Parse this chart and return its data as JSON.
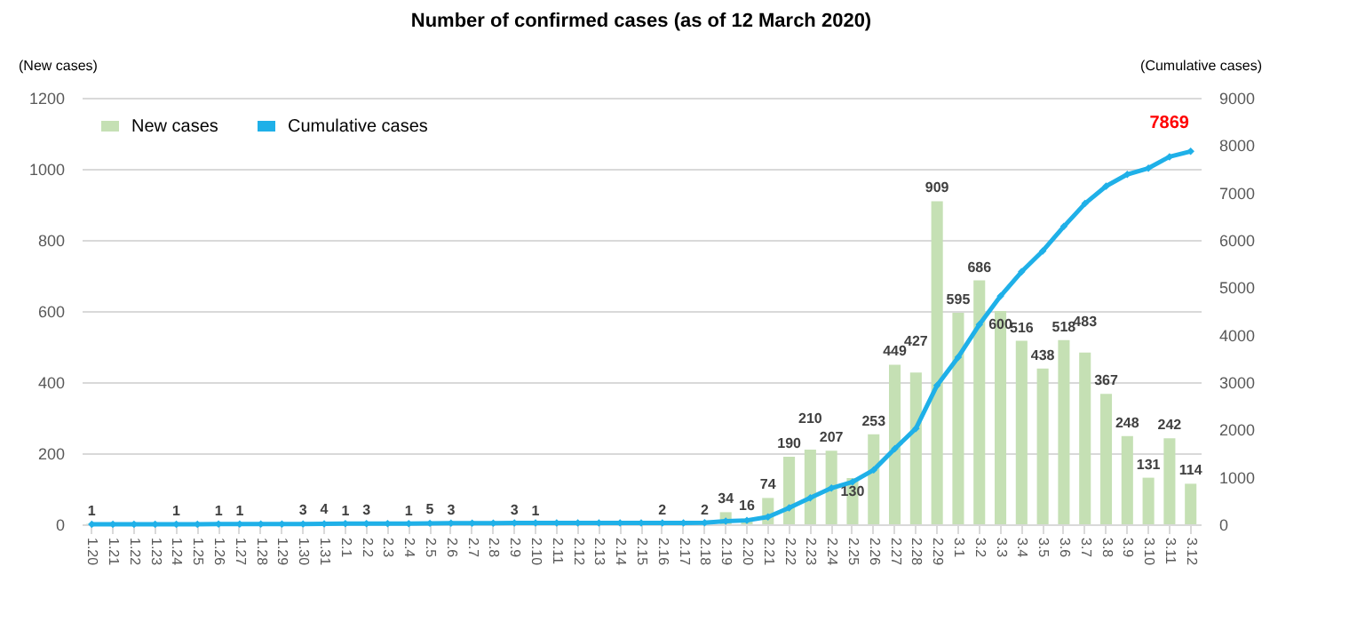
{
  "chart_data": {
    "type": "bar",
    "title": "Number of confirmed cases (as of 12 March 2020)",
    "ylabel": "(New cases)",
    "y2label": "(Cumulative cases)",
    "categories": [
      "1.20",
      "1.21",
      "1.22",
      "1.23",
      "1.24",
      "1.25",
      "1.26",
      "1.27",
      "1.28",
      "1.29",
      "1.30",
      "1.31",
      "2.1",
      "2.2",
      "2.3",
      "2.4",
      "2.5",
      "2.6",
      "2.7",
      "2.8",
      "2.9",
      "2.10",
      "2.11",
      "2.12",
      "2.13",
      "2.14",
      "2.15",
      "2.16",
      "2.17",
      "2.18",
      "2.19",
      "2.20",
      "2.21",
      "2.22",
      "2.23",
      "2.24",
      "2.25",
      "2.26",
      "2.27",
      "2.28",
      "2.29",
      "3.1",
      "3.2",
      "3.3",
      "3.4",
      "3.5",
      "3.6",
      "3.7",
      "3.8",
      "3.9",
      "3.10",
      "3.11",
      "3.12"
    ],
    "series": [
      {
        "name": "New cases",
        "color": "#c5e0b4",
        "values": [
          1,
          0,
          0,
          0,
          1,
          0,
          1,
          1,
          0,
          0,
          3,
          4,
          1,
          3,
          0,
          1,
          5,
          3,
          0,
          0,
          3,
          1,
          0,
          0,
          0,
          0,
          0,
          2,
          0,
          2,
          34,
          16,
          74,
          190,
          210,
          207,
          130,
          253,
          449,
          427,
          909,
          595,
          686,
          600,
          516,
          438,
          518,
          483,
          367,
          248,
          131,
          242,
          114
        ],
        "value_labels": [
          "1",
          null,
          null,
          null,
          "1",
          null,
          "1",
          "1",
          null,
          null,
          "3",
          "4",
          "1",
          "3",
          null,
          "1",
          "5",
          "3",
          null,
          null,
          "3",
          "1",
          null,
          null,
          null,
          null,
          null,
          "2",
          null,
          "2",
          "34",
          "16",
          "74",
          "190",
          "210",
          "207",
          "130",
          "253",
          "449",
          "427",
          "909",
          "595",
          "686",
          "600",
          "516",
          "438",
          "518",
          "483",
          "367",
          "248",
          "131",
          "242",
          "114"
        ]
      },
      {
        "name": "Cumulative cases",
        "type": "line",
        "axis": "y2",
        "color": "#1fb0e8",
        "marker": "diamond",
        "line_style": "solid",
        "values": [
          1,
          1,
          1,
          1,
          2,
          2,
          3,
          4,
          4,
          4,
          7,
          11,
          12,
          15,
          15,
          16,
          21,
          24,
          24,
          24,
          27,
          28,
          28,
          28,
          28,
          28,
          28,
          30,
          30,
          32,
          66,
          82,
          156,
          346,
          556,
          763,
          893,
          1146,
          1595,
          2022,
          2931,
          3526,
          4212,
          4812,
          5328,
          5766,
          6284,
          6767,
          7134,
          7382,
          7513,
          7755,
          7869
        ],
        "value_labels": [
          null,
          null,
          null,
          null,
          null,
          null,
          null,
          null,
          null,
          null,
          null,
          null,
          null,
          null,
          null,
          null,
          null,
          null,
          null,
          null,
          null,
          null,
          null,
          null,
          null,
          null,
          null,
          null,
          null,
          null,
          null,
          null,
          null,
          null,
          null,
          null,
          null,
          null,
          null,
          null,
          null,
          null,
          null,
          null,
          null,
          null,
          null,
          null,
          null,
          null,
          null,
          null,
          "7869"
        ]
      }
    ],
    "ylim": [
      0,
      1200
    ],
    "yticks": [
      0,
      200,
      400,
      600,
      800,
      1000,
      1200
    ],
    "y2lim": [
      0,
      9000
    ],
    "y2ticks": [
      0,
      1000,
      2000,
      3000,
      4000,
      5000,
      6000,
      7000,
      8000,
      9000
    ],
    "grid": "y",
    "legend": "top left"
  }
}
